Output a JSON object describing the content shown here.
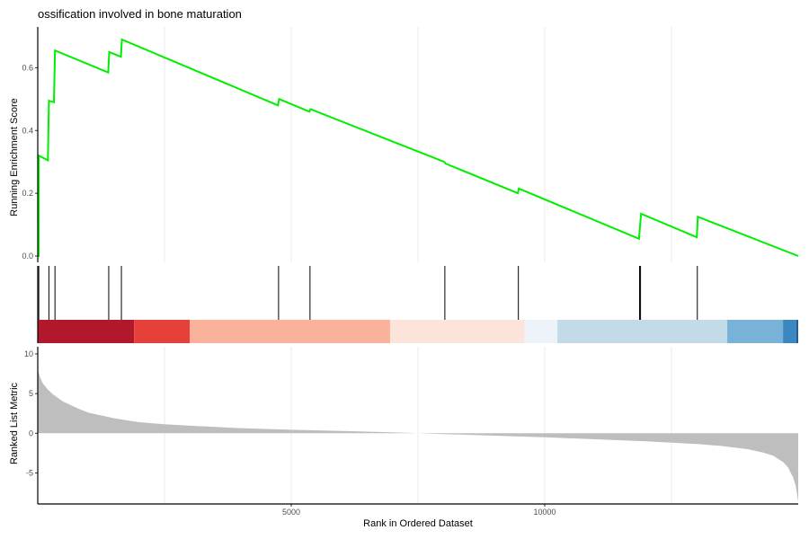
{
  "chart_data": [
    {
      "panel": "running_enrichment",
      "type": "line",
      "title": "ossification involved in bone maturation",
      "ylabel": "Running Enrichment Score",
      "xlim": [
        0,
        15000
      ],
      "ylim": [
        -0.02,
        0.73
      ],
      "y_ticks": [
        0.0,
        0.2,
        0.4,
        0.6
      ],
      "y_tick_labels": [
        "0.0",
        "0.2",
        "0.4",
        "0.6"
      ],
      "grid": true,
      "line_color": "#00ee00",
      "points": [
        [
          0,
          0.0
        ],
        [
          20,
          0.0
        ],
        [
          22,
          0.32
        ],
        [
          200,
          0.305
        ],
        [
          220,
          0.495
        ],
        [
          320,
          0.49
        ],
        [
          340,
          0.655
        ],
        [
          1390,
          0.585
        ],
        [
          1410,
          0.65
        ],
        [
          1640,
          0.635
        ],
        [
          1660,
          0.69
        ],
        [
          4740,
          0.48
        ],
        [
          4760,
          0.5
        ],
        [
          5360,
          0.46
        ],
        [
          5380,
          0.468
        ],
        [
          8020,
          0.3
        ],
        [
          8040,
          0.295
        ],
        [
          9470,
          0.2
        ],
        [
          9490,
          0.215
        ],
        [
          11860,
          0.055
        ],
        [
          11880,
          0.095
        ],
        [
          11900,
          0.135
        ],
        [
          13000,
          0.06
        ],
        [
          13020,
          0.125
        ],
        [
          15000,
          0.0
        ]
      ]
    },
    {
      "panel": "gene_hits",
      "type": "rug",
      "hits": [
        20,
        220,
        340,
        1400,
        1650,
        4750,
        5370,
        8030,
        9480,
        11870,
        11890,
        13010
      ]
    },
    {
      "panel": "rank_heatmap",
      "type": "heatmap",
      "segments": [
        {
          "start": 0,
          "end": 1900,
          "color": "#b2182b"
        },
        {
          "start": 1900,
          "end": 3000,
          "color": "#e6403a"
        },
        {
          "start": 3000,
          "end": 6950,
          "color": "#fbb29b"
        },
        {
          "start": 6950,
          "end": 9600,
          "color": "#fde4da"
        },
        {
          "start": 9600,
          "end": 10250,
          "color": "#eef3fa"
        },
        {
          "start": 10250,
          "end": 13600,
          "color": "#c3dbe8"
        },
        {
          "start": 13600,
          "end": 14700,
          "color": "#78b2d8"
        },
        {
          "start": 14700,
          "end": 14960,
          "color": "#3b87c0"
        },
        {
          "start": 14960,
          "end": 15000,
          "color": "#1f5c99"
        }
      ]
    },
    {
      "panel": "ranked_list",
      "type": "area",
      "ylabel": "Ranked List Metric",
      "xlabel": "Rank in Ordered Dataset",
      "xlim": [
        0,
        15000
      ],
      "ylim": [
        -8.9,
        10.9
      ],
      "x_ticks": [
        5000,
        10000
      ],
      "x_tick_labels": [
        "5000",
        "10000"
      ],
      "y_ticks": [
        10,
        5,
        0,
        -5
      ],
      "y_tick_labels": [
        "10",
        "5",
        "0",
        "-5"
      ],
      "fill_color": "#bebebe",
      "points": [
        [
          0,
          8.0
        ],
        [
          50,
          7.0
        ],
        [
          100,
          6.3
        ],
        [
          200,
          5.5
        ],
        [
          300,
          4.9
        ],
        [
          500,
          4.0
        ],
        [
          800,
          3.1
        ],
        [
          1000,
          2.6
        ],
        [
          1500,
          1.9
        ],
        [
          2000,
          1.4
        ],
        [
          2500,
          1.15
        ],
        [
          3000,
          0.95
        ],
        [
          4000,
          0.65
        ],
        [
          5000,
          0.45
        ],
        [
          6000,
          0.3
        ],
        [
          7000,
          0.12
        ],
        [
          7500,
          0.0
        ],
        [
          8000,
          -0.1
        ],
        [
          9000,
          -0.3
        ],
        [
          10000,
          -0.5
        ],
        [
          11000,
          -0.75
        ],
        [
          12000,
          -1.0
        ],
        [
          13000,
          -1.35
        ],
        [
          13500,
          -1.6
        ],
        [
          14000,
          -2.0
        ],
        [
          14300,
          -2.4
        ],
        [
          14500,
          -2.8
        ],
        [
          14700,
          -3.6
        ],
        [
          14800,
          -4.3
        ],
        [
          14900,
          -5.6
        ],
        [
          14950,
          -6.6
        ],
        [
          15000,
          -8.6
        ]
      ]
    }
  ]
}
